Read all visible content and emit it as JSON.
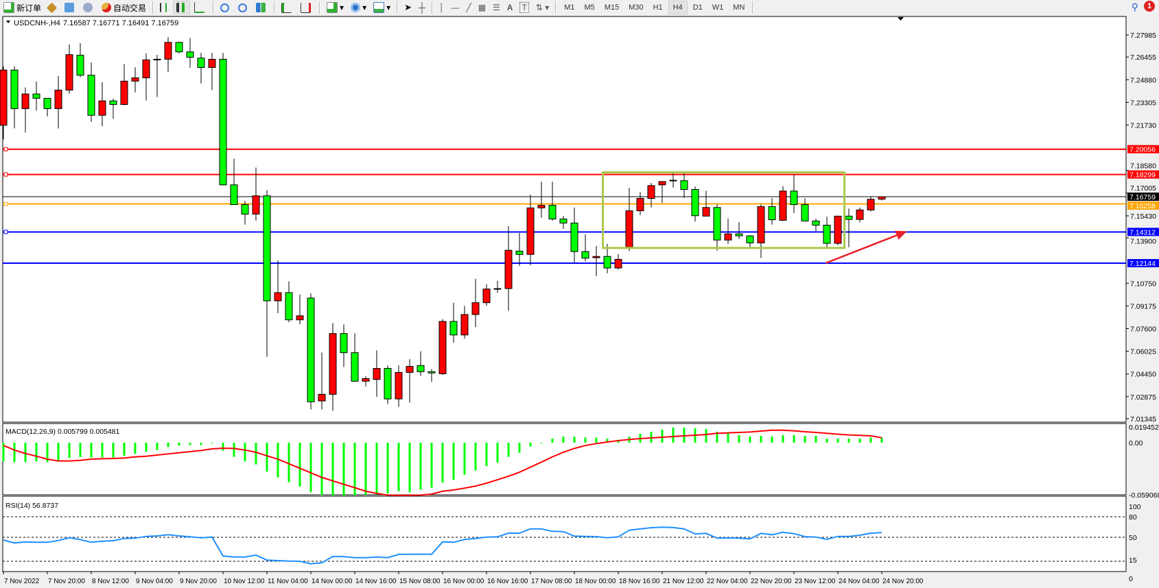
{
  "toolbar": {
    "new_order": "新订单",
    "auto_trading": "自动交易",
    "icons": [
      "new-order-icon",
      "market-watch-icon",
      "navigator-icon",
      "signals-icon",
      "auto-trading-icon",
      "bar-chart-icon",
      "candlestick-icon",
      "line-chart-icon",
      "zoom-in-icon",
      "zoom-out-icon",
      "tile-windows-icon",
      "auto-scroll-icon",
      "chart-shift-icon",
      "indicators-icon",
      "periods-icon",
      "templates-icon",
      "cursor-icon",
      "crosshair-icon",
      "vertical-line-icon",
      "horizontal-line-icon",
      "trendline-icon",
      "fibonacci-icon",
      "fibo-fan-icon",
      "text-icon",
      "text-label-icon",
      "arrows-icon"
    ],
    "text_tool": "A",
    "label_tool": "T",
    "timeframes": [
      "M1",
      "M5",
      "M15",
      "M30",
      "H1",
      "H4",
      "D1",
      "W1",
      "MN"
    ],
    "active_timeframe": "H4",
    "notifications": "1"
  },
  "chart_header": {
    "symbol": "USDCNH-,H4",
    "ohlc": "7.16587 7.16771 7.16491 7.16759"
  },
  "colors": {
    "up_candle": "#ff0000",
    "down_candle": "#00ff00",
    "macd_hist": "#00ff00",
    "macd_signal": "#ff0000",
    "rsi_line": "#1e90ff",
    "box": "#a8c84a",
    "arrow": "#e8202a"
  },
  "chart_data": {
    "type": "candlestick",
    "price_axis_ticks": [
      "7.27985",
      "7.26455",
      "7.24880",
      "7.23305",
      "7.21730",
      "7.18580",
      "7.17005",
      "7.15430",
      "7.13900",
      "7.10750",
      "7.09175",
      "7.07600",
      "7.06025",
      "7.04450",
      "7.02875",
      "7.01345"
    ],
    "ylim": [
      7.01345,
      7.2865
    ],
    "time_labels": [
      "7 Nov 2022",
      "7 Nov 20:00",
      "8 Nov 12:00",
      "9 Nov 04:00",
      "9 Nov 20:00",
      "10 Nov 12:00",
      "11 Nov 04:00",
      "14 Nov 00:00",
      "14 Nov 16:00",
      "15 Nov 08:00",
      "16 Nov 00:00",
      "16 Nov 16:00",
      "17 Nov 08:00",
      "18 Nov 00:00",
      "18 Nov 16:00",
      "21 Nov 12:00",
      "22 Nov 04:00",
      "22 Nov 20:00",
      "23 Nov 12:00",
      "24 Nov 04:00",
      "24 Nov 20:00"
    ],
    "time_label_every_bars": 4,
    "ohlc": [
      [
        7.2172,
        7.2581,
        7.2074,
        7.2555
      ],
      [
        7.2555,
        7.2581,
        7.215,
        7.2287
      ],
      [
        7.2287,
        7.2434,
        7.2122,
        7.2389
      ],
      [
        7.2389,
        7.2475,
        7.2273,
        7.2359
      ],
      [
        7.2359,
        7.2359,
        7.2234,
        7.2287
      ],
      [
        7.2287,
        7.2514,
        7.215,
        7.2416
      ],
      [
        7.2416,
        7.2733,
        7.2391,
        7.2662
      ],
      [
        7.2658,
        7.2742,
        7.2505,
        7.2519
      ],
      [
        7.2519,
        7.2608,
        7.2195,
        7.2241
      ],
      [
        7.2241,
        7.2471,
        7.2164,
        7.2341
      ],
      [
        7.2341,
        7.2357,
        7.2216,
        7.2316
      ],
      [
        7.2316,
        7.2597,
        7.2311,
        7.2478
      ],
      [
        7.2478,
        7.2574,
        7.24,
        7.2501
      ],
      [
        7.2501,
        7.2671,
        7.2344,
        7.2626
      ],
      [
        7.2626,
        7.266,
        7.2368,
        7.263
      ],
      [
        7.263,
        7.2783,
        7.2542,
        7.2747
      ],
      [
        7.2747,
        7.2752,
        7.2671,
        7.2681
      ],
      [
        7.2681,
        7.2777,
        7.2571,
        7.2644
      ],
      [
        7.2638,
        7.2674,
        7.2462,
        7.2573
      ],
      [
        7.2573,
        7.2674,
        7.2416,
        7.263
      ],
      [
        7.263,
        7.2674,
        7.1753,
        7.1758
      ],
      [
        7.1758,
        7.194,
        7.1621,
        7.1621
      ],
      [
        7.1621,
        7.1646,
        7.1482,
        7.1555
      ],
      [
        7.1555,
        7.1878,
        7.151,
        7.1682
      ],
      [
        7.1682,
        7.1722,
        7.0564,
        7.0953
      ],
      [
        7.0953,
        7.1234,
        7.0867,
        7.101
      ],
      [
        7.101,
        7.1088,
        7.0805,
        7.0821
      ],
      [
        7.0821,
        7.0997,
        7.0791,
        7.0849
      ],
      [
        7.0972,
        7.1004,
        7.0199,
        7.0252
      ],
      [
        7.0258,
        7.0594,
        7.0199,
        7.0304
      ],
      [
        7.0304,
        7.0798,
        7.019,
        7.0726
      ],
      [
        7.0726,
        7.0789,
        7.0493,
        7.0593
      ],
      [
        7.0593,
        7.0728,
        7.039,
        7.0395
      ],
      [
        7.0395,
        7.0429,
        7.0359,
        7.0413
      ],
      [
        7.0407,
        7.0609,
        7.0286,
        7.0484
      ],
      [
        7.0484,
        7.0505,
        7.0236,
        7.0272
      ],
      [
        7.0272,
        7.0505,
        7.0217,
        7.0456
      ],
      [
        7.0456,
        7.0548,
        7.0247,
        7.0498
      ],
      [
        7.0504,
        7.0603,
        7.0431,
        7.0461
      ],
      [
        7.0461,
        7.0479,
        7.039,
        7.0452
      ],
      [
        7.0447,
        7.0826,
        7.0439,
        7.081
      ],
      [
        7.081,
        7.094,
        7.0662,
        7.0716
      ],
      [
        7.0716,
        7.0917,
        7.0691,
        7.0858
      ],
      [
        7.0858,
        7.1106,
        7.0771,
        7.094
      ],
      [
        7.094,
        7.1068,
        7.0919,
        7.1035
      ],
      [
        7.1035,
        7.1092,
        7.1008,
        7.1038
      ],
      [
        7.1038,
        7.1471,
        7.0885,
        7.1304
      ],
      [
        7.1298,
        7.1423,
        7.1195,
        7.1275
      ],
      [
        7.1275,
        7.169,
        7.1199,
        7.1598
      ],
      [
        7.1598,
        7.178,
        7.153,
        7.1616
      ],
      [
        7.1616,
        7.178,
        7.1509,
        7.1521
      ],
      [
        7.1521,
        7.1543,
        7.1453,
        7.1493
      ],
      [
        7.1493,
        7.1601,
        7.1218,
        7.1295
      ],
      [
        7.1295,
        7.1414,
        7.1227,
        7.1249
      ],
      [
        7.1252,
        7.1334,
        7.1124,
        7.1261
      ],
      [
        7.1261,
        7.1348,
        7.1145,
        7.1181
      ],
      [
        7.1181,
        7.1277,
        7.117,
        7.1241
      ],
      [
        7.1325,
        7.1737,
        7.1298,
        7.1578
      ],
      [
        7.1578,
        7.1708,
        7.1548,
        7.1664
      ],
      [
        7.1664,
        7.1771,
        7.1601,
        7.1753
      ],
      [
        7.1758,
        7.1781,
        7.1633,
        7.1781
      ],
      [
        7.179,
        7.1842,
        7.1739,
        7.1787
      ],
      [
        7.1787,
        7.1842,
        7.1667,
        7.1726
      ],
      [
        7.1726,
        7.1746,
        7.1503,
        7.1544
      ],
      [
        7.1541,
        7.1717,
        7.1541,
        7.1601
      ],
      [
        7.1601,
        7.1623,
        7.1302,
        7.1375
      ],
      [
        7.1375,
        7.1523,
        7.1348,
        7.1418
      ],
      [
        7.1418,
        7.15,
        7.1382,
        7.1404
      ],
      [
        7.1404,
        7.1409,
        7.1325,
        7.1355
      ],
      [
        7.1355,
        7.1623,
        7.125,
        7.1607
      ],
      [
        7.1607,
        7.1665,
        7.1482,
        7.1516
      ],
      [
        7.1512,
        7.1749,
        7.1507,
        7.1715
      ],
      [
        7.1715,
        7.1829,
        7.1562,
        7.1621
      ],
      [
        7.1621,
        7.1665,
        7.1507,
        7.1507
      ],
      [
        7.1507,
        7.1523,
        7.1437,
        7.1478
      ],
      [
        7.1478,
        7.1537,
        7.1325,
        7.1352
      ],
      [
        7.1352,
        7.1541,
        7.1338,
        7.1541
      ],
      [
        7.1541,
        7.1594,
        7.1325,
        7.1518
      ],
      [
        7.1518,
        7.1601,
        7.1498,
        7.1584
      ],
      [
        7.1584,
        7.1678,
        7.1573,
        7.1658
      ],
      [
        7.16587,
        7.16771,
        7.16491,
        7.16759
      ]
    ],
    "horizontal_lines": [
      {
        "price": "7.20056",
        "color": "#ff0000"
      },
      {
        "price": "7.18299",
        "color": "#ff0000"
      },
      {
        "price": "7.16759",
        "color": "#000000",
        "kind": "bid"
      },
      {
        "price": "7.16258",
        "color": "#ffa500"
      },
      {
        "price": "7.14312",
        "color": "#0000ff"
      },
      {
        "price": "7.12144",
        "color": "#0000ff"
      }
    ],
    "rectangle": {
      "bar_from": 54.6,
      "bar_to": 76.6,
      "price_top": 7.1845,
      "price_bottom": 7.132
    },
    "arrow": {
      "bar_from": 74.9,
      "price_from": 7.1215,
      "bar_to": 82.3,
      "price_to": 7.1436
    },
    "macd": {
      "label": "MACD(12,26,9) 0.005799 0.005481",
      "axis_labels": [
        "0.019452",
        "0.00",
        "-0.059068"
      ],
      "ylim": [
        -0.059068,
        0.019452
      ],
      "histogram": [
        -0.0209,
        -0.0217,
        -0.0217,
        -0.0209,
        -0.0217,
        -0.0197,
        -0.0171,
        -0.0161,
        -0.0166,
        -0.0166,
        -0.0166,
        -0.0146,
        -0.0125,
        -0.0102,
        -0.0082,
        -0.0049,
        -0.0033,
        -0.0026,
        -0.0026,
        -0.0005,
        -0.0089,
        -0.0158,
        -0.0209,
        -0.0243,
        -0.0324,
        -0.0388,
        -0.0442,
        -0.049,
        -0.0554,
        -0.0585,
        -0.059,
        -0.059,
        -0.059,
        -0.0585,
        -0.058,
        -0.0567,
        -0.0542,
        -0.0554,
        -0.0524,
        -0.0503,
        -0.0447,
        -0.0414,
        -0.0358,
        -0.0312,
        -0.0261,
        -0.0222,
        -0.0158,
        -0.0112,
        -0.0043,
        -0.0003,
        0.0046,
        0.0069,
        0.0069,
        0.0059,
        0.0059,
        0.0046,
        0.0033,
        0.0069,
        0.01,
        0.0123,
        0.0146,
        0.0169,
        0.0169,
        0.0161,
        0.0153,
        0.0123,
        0.0107,
        0.0084,
        0.0069,
        0.0077,
        0.0069,
        0.0084,
        0.0084,
        0.0077,
        0.0077,
        0.0046,
        0.0046,
        0.0046,
        0.0046,
        0.0058,
        0.0058
      ],
      "signal": [
        -0.0031,
        -0.0082,
        -0.012,
        -0.0151,
        -0.0184,
        -0.0204,
        -0.0204,
        -0.0197,
        -0.0184,
        -0.0179,
        -0.0176,
        -0.0171,
        -0.0158,
        -0.0151,
        -0.0138,
        -0.0125,
        -0.0112,
        -0.01,
        -0.0087,
        -0.0069,
        -0.0061,
        -0.0064,
        -0.0082,
        -0.0107,
        -0.0146,
        -0.0184,
        -0.0235,
        -0.0286,
        -0.0337,
        -0.0388,
        -0.0427,
        -0.0465,
        -0.0503,
        -0.0542,
        -0.0567,
        -0.0585,
        -0.0588,
        -0.0588,
        -0.0585,
        -0.0575,
        -0.0542,
        -0.0529,
        -0.0508,
        -0.0485,
        -0.0452,
        -0.0414,
        -0.0375,
        -0.033,
        -0.0273,
        -0.0217,
        -0.0158,
        -0.0107,
        -0.0064,
        -0.0031,
        -0.001,
        0.0008,
        0.0023,
        0.0036,
        0.0046,
        0.0054,
        0.0061,
        0.0069,
        0.0077,
        0.0084,
        0.0092,
        0.0105,
        0.011,
        0.0115,
        0.012,
        0.013,
        0.014,
        0.014,
        0.0133,
        0.0123,
        0.0115,
        0.0105,
        0.0095,
        0.0087,
        0.0082,
        0.0077,
        0.0055
      ]
    },
    "rsi": {
      "label": "RSI(14) 56.8737",
      "axis_labels": [
        "100",
        "80",
        "50",
        "15",
        "0"
      ],
      "levels": [
        80,
        50,
        15
      ],
      "values": [
        46,
        41.7,
        43.3,
        42.7,
        42.7,
        45.3,
        49.3,
        46.7,
        42.7,
        44.3,
        45,
        48.3,
        48.7,
        51.3,
        52,
        53.7,
        52,
        50.7,
        49.3,
        50.3,
        22.7,
        21.3,
        21.3,
        24,
        16.7,
        16,
        15.3,
        15,
        11.3,
        12.7,
        22,
        21.7,
        20.3,
        20.3,
        21.3,
        20.3,
        25,
        25.3,
        25.3,
        25.3,
        43.3,
        42.7,
        46.7,
        48.3,
        50.3,
        50.7,
        56,
        56,
        62.3,
        62.3,
        58.7,
        58.3,
        51.7,
        51.3,
        51,
        49.3,
        50.7,
        60.3,
        62.3,
        64,
        64.7,
        64.3,
        62.3,
        55,
        55.7,
        48.7,
        49,
        48.7,
        47.7,
        55.7,
        53.7,
        57.3,
        55.3,
        51,
        50.3,
        47,
        51.3,
        51.3,
        53,
        56,
        56.87
      ]
    }
  }
}
